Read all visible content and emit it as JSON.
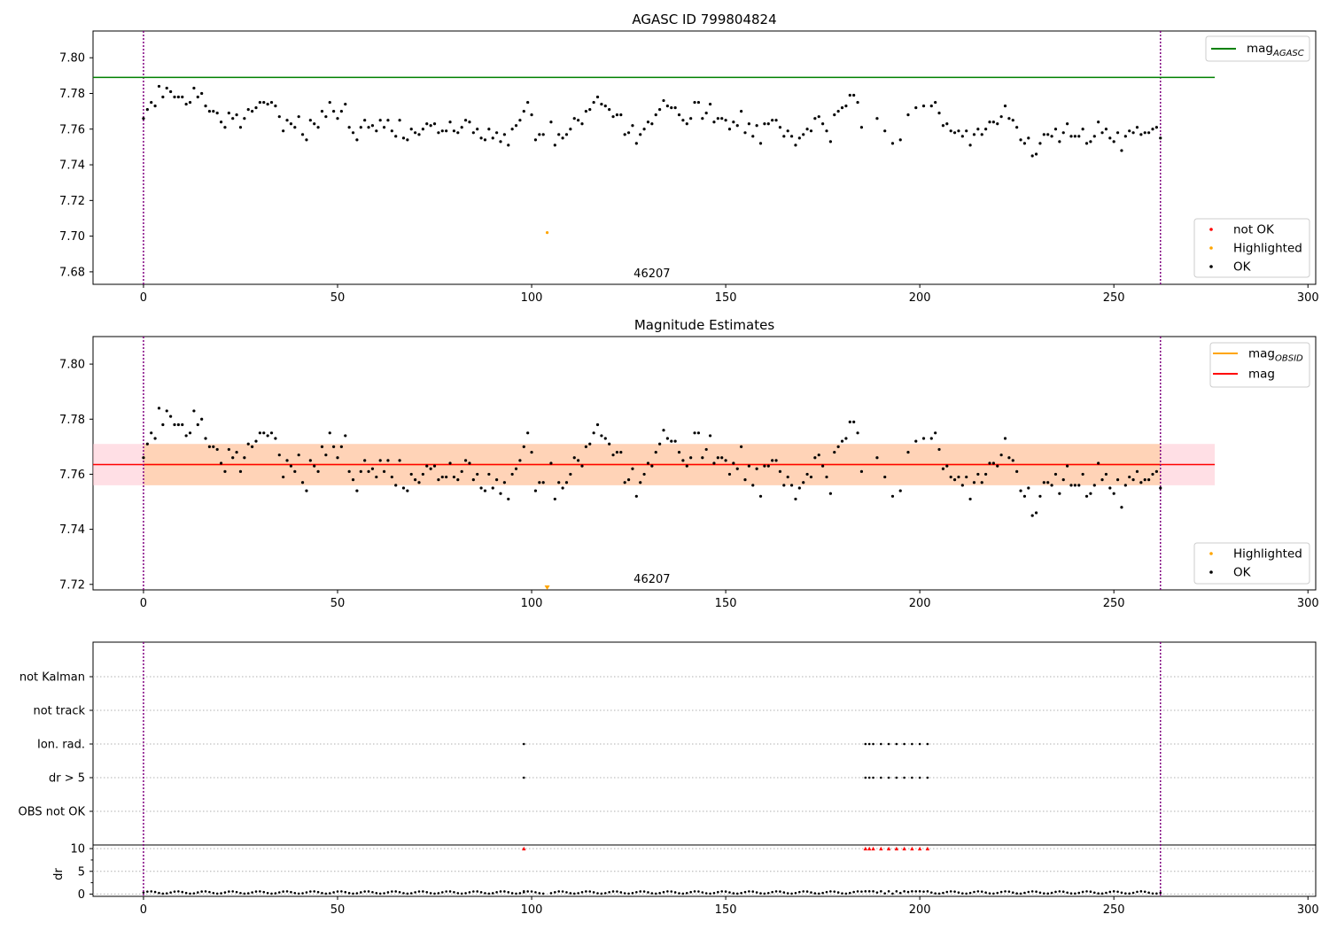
{
  "chart_data": [
    {
      "type": "scatter",
      "title": "AGASC ID 799804824",
      "xlim": [
        -13,
        302
      ],
      "ylim": [
        7.673,
        7.815
      ],
      "xticks": [
        0,
        50,
        100,
        150,
        200,
        250,
        300
      ],
      "yticks": [
        7.68,
        7.7,
        7.72,
        7.74,
        7.76,
        7.78,
        7.8
      ],
      "ytick_labels": [
        "7.68",
        "7.70",
        "7.72",
        "7.74",
        "7.76",
        "7.78",
        "7.80"
      ],
      "grid": false,
      "legend_upper": {
        "placement": "top-right",
        "entries": [
          {
            "label_main": "mag",
            "label_sub": "AGASC",
            "color": "#008000",
            "kind": "line"
          }
        ]
      },
      "legend_lower": {
        "placement": "bottom-right",
        "entries": [
          {
            "label": "not OK",
            "color": "#ff0000",
            "kind": "dot"
          },
          {
            "label": "Highlighted",
            "color": "#ffa500",
            "kind": "dot"
          },
          {
            "label": "OK",
            "color": "#000000",
            "kind": "dot"
          }
        ]
      },
      "mag_agasc": 7.789,
      "mag_agasc_xrange": [
        -13,
        276
      ],
      "vlines": [
        0,
        262
      ],
      "obsid_label": {
        "text": "46207",
        "x": 131,
        "y": 7.677
      },
      "highlighted": [
        {
          "x": 104,
          "y": 7.702
        }
      ],
      "ok_x": [
        0,
        1,
        2,
        3,
        4,
        5,
        6,
        7,
        8,
        9,
        10,
        11,
        12,
        13,
        14,
        15,
        16,
        17,
        18,
        19,
        20,
        21,
        22,
        23,
        24,
        25,
        26,
        27,
        28,
        29,
        30,
        31,
        32,
        33,
        34,
        35,
        36,
        37,
        38,
        39,
        40,
        41,
        42,
        43,
        44,
        45,
        46,
        47,
        48,
        49,
        50,
        51,
        52,
        53,
        54,
        55,
        56,
        57,
        58,
        59,
        60,
        61,
        62,
        63,
        64,
        65,
        66,
        67,
        68,
        69,
        70,
        71,
        72,
        73,
        74,
        75,
        76,
        77,
        78,
        79,
        80,
        81,
        82,
        83,
        84,
        85,
        86,
        87,
        88,
        89,
        90,
        91,
        92,
        93,
        94,
        95,
        96,
        97,
        98,
        99,
        100,
        101,
        102,
        103,
        105,
        106,
        107,
        108,
        109,
        110,
        111,
        112,
        113,
        114,
        115,
        116,
        117,
        118,
        119,
        120,
        121,
        122,
        123,
        124,
        125,
        126,
        127,
        128,
        129,
        130,
        131,
        132,
        133,
        134,
        135,
        136,
        137,
        138,
        139,
        140,
        141,
        142,
        143,
        144,
        145,
        146,
        147,
        148,
        149,
        150,
        151,
        152,
        153,
        154,
        155,
        156,
        157,
        158,
        159,
        160,
        161,
        162,
        163,
        164,
        165,
        166,
        167,
        168,
        169,
        170,
        171,
        172,
        173,
        174,
        175,
        176,
        177,
        178,
        179,
        180,
        181,
        182,
        183,
        184,
        185,
        189,
        191,
        193,
        195,
        197,
        199,
        201,
        203,
        204,
        205,
        206,
        207,
        208,
        209,
        210,
        211,
        212,
        213,
        214,
        215,
        216,
        217,
        218,
        219,
        220,
        221,
        222,
        223,
        224,
        225,
        226,
        227,
        228,
        229,
        230,
        231,
        232,
        233,
        234,
        235,
        236,
        237,
        238,
        239,
        240,
        241,
        242,
        243,
        244,
        245,
        246,
        247,
        248,
        249,
        250,
        251,
        252,
        253,
        254,
        255,
        256,
        257,
        258,
        259,
        260,
        261,
        262
      ],
      "ok_y": [
        7.766,
        7.771,
        7.775,
        7.773,
        7.784,
        7.778,
        7.783,
        7.781,
        7.778,
        7.778,
        7.778,
        7.774,
        7.775,
        7.783,
        7.778,
        7.78,
        7.773,
        7.77,
        7.77,
        7.769,
        7.764,
        7.761,
        7.769,
        7.766,
        7.768,
        7.761,
        7.766,
        7.771,
        7.77,
        7.772,
        7.775,
        7.775,
        7.774,
        7.775,
        7.773,
        7.767,
        7.759,
        7.765,
        7.763,
        7.761,
        7.767,
        7.757,
        7.754,
        7.765,
        7.763,
        7.761,
        7.77,
        7.767,
        7.775,
        7.77,
        7.766,
        7.77,
        7.774,
        7.761,
        7.758,
        7.754,
        7.761,
        7.765,
        7.761,
        7.762,
        7.759,
        7.765,
        7.761,
        7.765,
        7.759,
        7.756,
        7.765,
        7.755,
        7.754,
        7.76,
        7.758,
        7.757,
        7.76,
        7.763,
        7.762,
        7.763,
        7.758,
        7.759,
        7.759,
        7.764,
        7.759,
        7.758,
        7.761,
        7.765,
        7.764,
        7.758,
        7.76,
        7.755,
        7.754,
        7.76,
        7.755,
        7.758,
        7.753,
        7.757,
        7.751,
        7.76,
        7.762,
        7.765,
        7.77,
        7.775,
        7.768,
        7.754,
        7.757,
        7.757,
        7.764,
        7.751,
        7.757,
        7.755,
        7.757,
        7.76,
        7.766,
        7.765,
        7.763,
        7.77,
        7.771,
        7.775,
        7.778,
        7.774,
        7.773,
        7.771,
        7.767,
        7.768,
        7.768,
        7.757,
        7.758,
        7.762,
        7.752,
        7.757,
        7.76,
        7.764,
        7.763,
        7.768,
        7.771,
        7.776,
        7.773,
        7.772,
        7.772,
        7.768,
        7.765,
        7.763,
        7.766,
        7.775,
        7.775,
        7.766,
        7.769,
        7.774,
        7.764,
        7.766,
        7.766,
        7.765,
        7.76,
        7.764,
        7.762,
        7.77,
        7.758,
        7.763,
        7.756,
        7.762,
        7.752,
        7.763,
        7.763,
        7.765,
        7.765,
        7.761,
        7.756,
        7.759,
        7.756,
        7.751,
        7.755,
        7.757,
        7.76,
        7.759,
        7.766,
        7.767,
        7.763,
        7.759,
        7.753,
        7.768,
        7.77,
        7.772,
        7.773,
        7.779,
        7.779,
        7.775,
        7.761,
        7.766,
        7.759,
        7.752,
        7.754,
        7.768,
        7.772,
        7.773,
        7.773,
        7.775,
        7.769,
        7.762,
        7.763,
        7.759,
        7.758,
        7.759,
        7.756,
        7.759,
        7.751,
        7.757,
        7.76,
        7.757,
        7.76,
        7.764,
        7.764,
        7.763,
        7.767,
        7.773,
        7.766,
        7.765,
        7.761,
        7.754,
        7.752,
        7.755,
        7.745,
        7.746,
        7.752,
        7.757,
        7.757,
        7.756,
        7.76,
        7.753,
        7.758,
        7.763,
        7.756,
        7.756,
        7.756,
        7.76,
        7.752,
        7.753,
        7.756,
        7.764,
        7.758,
        7.76,
        7.755,
        7.753,
        7.758,
        7.748,
        7.756,
        7.759,
        7.758,
        7.761,
        7.757,
        7.758,
        7.758,
        7.76,
        7.761,
        7.755
      ]
    },
    {
      "type": "scatter",
      "title": "Magnitude Estimates",
      "xlim": [
        -13,
        302
      ],
      "ylim": [
        7.718,
        7.81
      ],
      "xticks": [
        0,
        50,
        100,
        150,
        200,
        250,
        300
      ],
      "yticks": [
        7.72,
        7.74,
        7.76,
        7.78,
        7.8
      ],
      "ytick_labels": [
        "7.72",
        "7.74",
        "7.76",
        "7.78",
        "7.80"
      ],
      "grid": false,
      "legend_upper": {
        "placement": "top-right",
        "entries": [
          {
            "label_main": "mag",
            "label_sub": "OBSID",
            "color": "#ffa500",
            "kind": "line"
          },
          {
            "label_main": "mag",
            "label_sub": "",
            "color": "#ff0000",
            "kind": "line"
          }
        ]
      },
      "legend_lower": {
        "placement": "bottom-right",
        "entries": [
          {
            "label": "Highlighted",
            "color": "#ffa500",
            "kind": "dot"
          },
          {
            "label": "OK",
            "color": "#000000",
            "kind": "dot"
          }
        ]
      },
      "mag": 7.7635,
      "mag_band": [
        7.756,
        7.771
      ],
      "mag_obsid": 7.7635,
      "mag_obsid_band": [
        7.756,
        7.771
      ],
      "mag_xrange": [
        -13,
        276
      ],
      "mag_obsid_xrange": [
        0,
        262
      ],
      "vlines": [
        0,
        262
      ],
      "obsid_label": {
        "text": "46207",
        "x": 131,
        "y": 7.7205
      },
      "highlighted_marker": {
        "x": 104,
        "y": 7.7188
      }
    },
    {
      "type": "scatter",
      "title": "",
      "xlim": [
        -13,
        302
      ],
      "xticks": [
        0,
        50,
        100,
        150,
        200,
        250,
        300
      ],
      "vlines": [
        0,
        262
      ],
      "flag_rows": [
        "not Kalman",
        "not track",
        "Ion. rad.",
        "dr > 5",
        "OBS not OK"
      ],
      "flag_x": [
        98,
        186,
        187,
        188,
        190,
        192,
        194,
        196,
        198,
        200,
        202
      ],
      "flag_rows_marked": [
        "Ion. rad.",
        "dr > 5"
      ],
      "dr_ylabel": "dr",
      "dr_ylim": [
        -0.5,
        10.8
      ],
      "dr_yticks": [
        0,
        5,
        10
      ],
      "dr_ytick_labels": [
        "0",
        "5",
        "10"
      ],
      "dr_minor_ticks": [
        2.5,
        7.5
      ],
      "dr_clipped_x": [
        98,
        186,
        187,
        188,
        190,
        192,
        194,
        196,
        198,
        200,
        202
      ],
      "dr_clipped_value": 10
    }
  ]
}
